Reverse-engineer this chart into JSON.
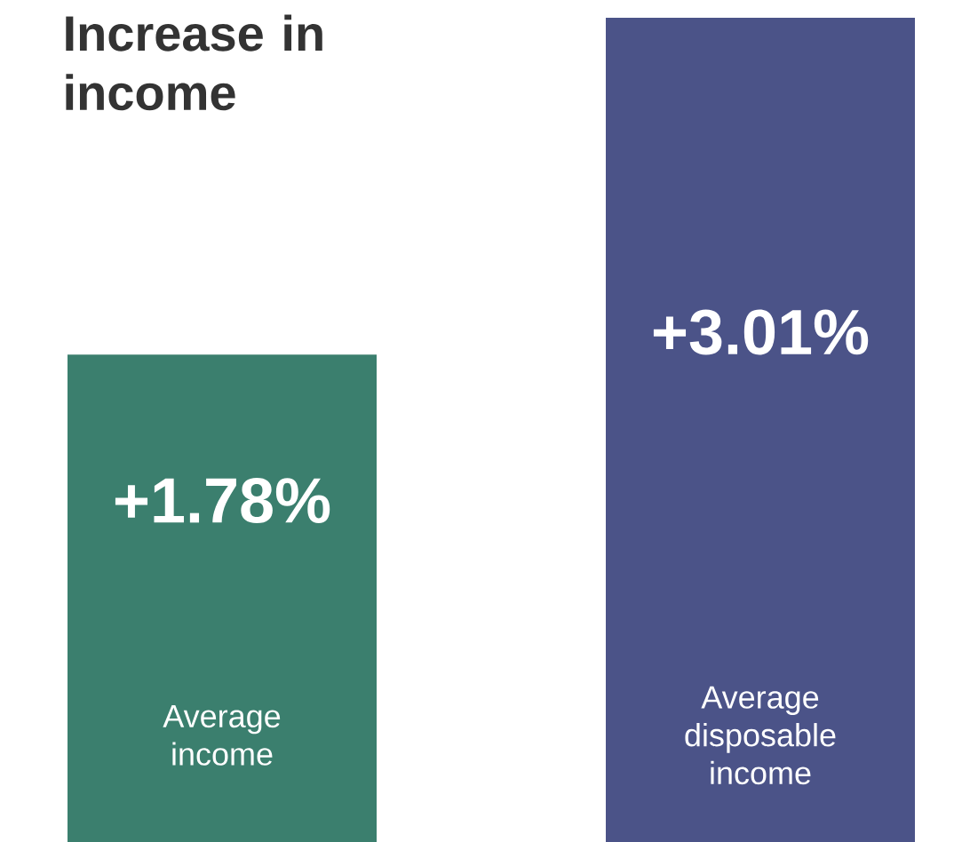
{
  "chart_data": {
    "type": "bar",
    "title": "Increase in income",
    "categories": [
      "Average income",
      "Average disposable income"
    ],
    "values": [
      1.78,
      3.01
    ],
    "value_labels": [
      "+1.78%",
      "+3.01%"
    ],
    "colors": [
      "#3b7f6e",
      "#4b5388"
    ]
  }
}
